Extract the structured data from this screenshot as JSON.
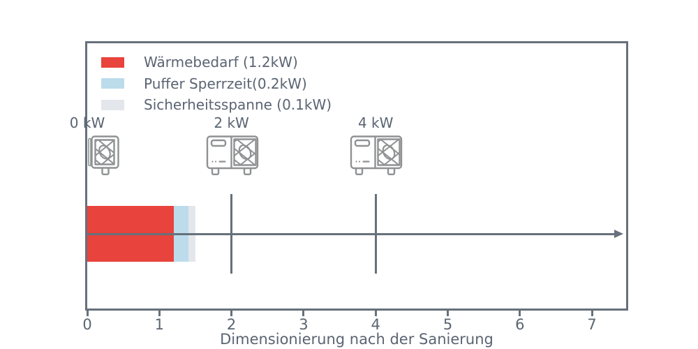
{
  "chart_data": {
    "type": "bar",
    "orientation": "horizontal",
    "title": "",
    "xlabel": "Dimensionierung nach der Sanierung",
    "ylabel": "",
    "xlim": [
      0,
      7.5
    ],
    "x_ticks": [
      0,
      1,
      2,
      3,
      4,
      5,
      6,
      7
    ],
    "grid": false,
    "legend_position": "upper left",
    "series": [
      {
        "name": "Wärmebedarf (1.2kW)",
        "value": 1.2,
        "color": "#e8433c"
      },
      {
        "name": "Puffer Sperrzeit(0.2kW)",
        "value": 0.2,
        "color": "#bcdcec"
      },
      {
        "name": "Sicherheitsspanne (0.1kW)",
        "value": 0.1,
        "color": "#e3e6eb"
      }
    ],
    "markers": [
      {
        "label": "0 kW",
        "x": 0,
        "icon": "heat-pump-small"
      },
      {
        "label": "2 kW",
        "x": 2,
        "icon": "heat-pump-large"
      },
      {
        "label": "4 kW",
        "x": 4,
        "icon": "heat-pump-large"
      }
    ],
    "colors": {
      "axis": "#67707b",
      "text": "#5a6472",
      "icon": "#8f9192",
      "background": "#ffffff"
    }
  }
}
